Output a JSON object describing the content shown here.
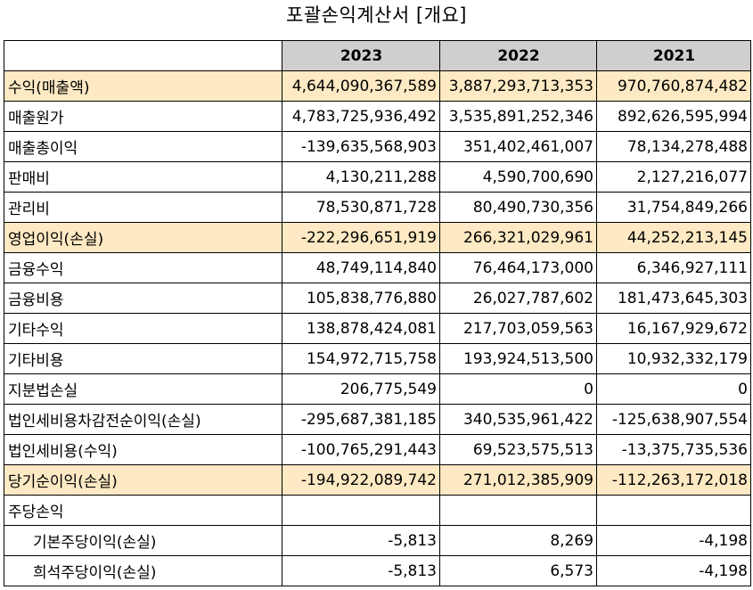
{
  "title": "포괄손익계산서 [개요]",
  "headers": [
    "2023",
    "2022",
    "2021"
  ],
  "rows": [
    {
      "label": "수익(매출액)",
      "v2023": "4,644,090,367,589",
      "v2022": "3,887,293,713,353",
      "v2021": "970,760,874,482",
      "highlight": true
    },
    {
      "label": "매출원가",
      "v2023": "4,783,725,936,492",
      "v2022": "3,535,891,252,346",
      "v2021": "892,626,595,994"
    },
    {
      "label": "매출총이익",
      "v2023": "-139,635,568,903",
      "v2022": "351,402,461,007",
      "v2021": "78,134,278,488"
    },
    {
      "label": "판매비",
      "v2023": "4,130,211,288",
      "v2022": "4,590,700,690",
      "v2021": "2,127,216,077"
    },
    {
      "label": "관리비",
      "v2023": "78,530,871,728",
      "v2022": "80,490,730,356",
      "v2021": "31,754,849,266"
    },
    {
      "label": "영업이익(손실)",
      "v2023": "-222,296,651,919",
      "v2022": "266,321,029,961",
      "v2021": "44,252,213,145",
      "highlight": true
    },
    {
      "label": "금융수익",
      "v2023": "48,749,114,840",
      "v2022": "76,464,173,000",
      "v2021": "6,346,927,111"
    },
    {
      "label": "금융비용",
      "v2023": "105,838,776,880",
      "v2022": "26,027,787,602",
      "v2021": "181,473,645,303"
    },
    {
      "label": "기타수익",
      "v2023": "138,878,424,081",
      "v2022": "217,703,059,563",
      "v2021": "16,167,929,672"
    },
    {
      "label": "기타비용",
      "v2023": "154,972,715,758",
      "v2022": "193,924,513,500",
      "v2021": "10,932,332,179"
    },
    {
      "label": "지분법손실",
      "v2023": "206,775,549",
      "v2022": "0",
      "v2021": "0"
    },
    {
      "label": "법인세비용차감전순이익(손실)",
      "v2023": "-295,687,381,185",
      "v2022": "340,535,961,422",
      "v2021": "-125,638,907,554"
    },
    {
      "label": "법인세비용(수익)",
      "v2023": "-100,765,291,443",
      "v2022": "69,523,575,513",
      "v2021": "-13,375,735,536"
    },
    {
      "label": "당기순이익(손실)",
      "v2023": "-194,922,089,742",
      "v2022": "271,012,385,909",
      "v2021": "-112,263,172,018",
      "highlight": true
    },
    {
      "label": "주당손익",
      "v2023": "",
      "v2022": "",
      "v2021": ""
    },
    {
      "label": "기본주당이익(손실)",
      "v2023": "-5,813",
      "v2022": "8,269",
      "v2021": "-4,198",
      "indent": true
    },
    {
      "label": "희석주당이익(손실)",
      "v2023": "-5,813",
      "v2022": "6,573",
      "v2021": "-4,198",
      "indent": true
    }
  ]
}
